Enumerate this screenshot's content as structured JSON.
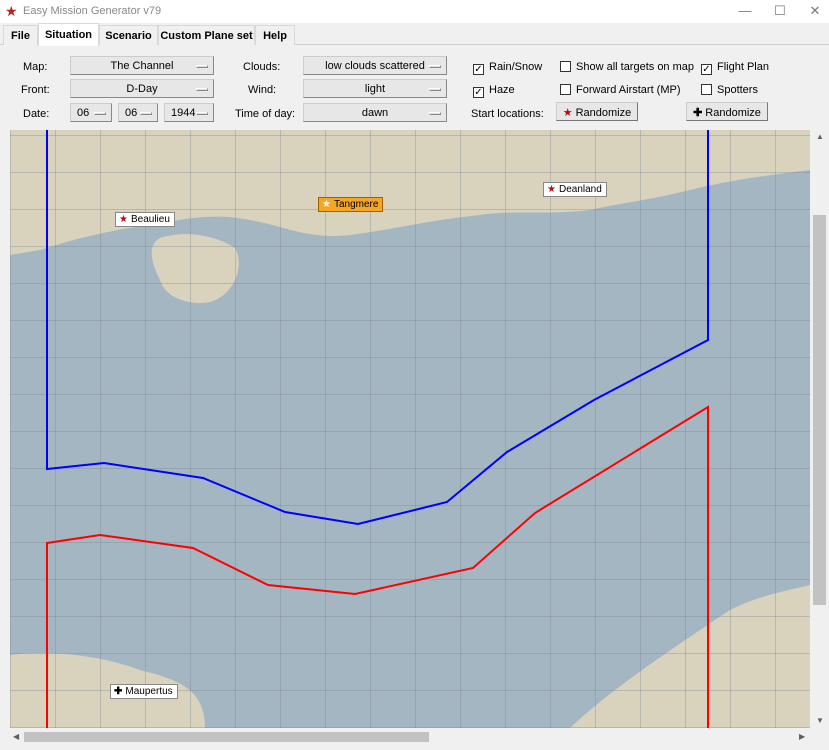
{
  "window": {
    "title": "Easy Mission Generator v79",
    "minimize": "—",
    "maximize": "☐",
    "close": "✕"
  },
  "tabs": [
    {
      "label": "File"
    },
    {
      "label": "Situation",
      "active": true
    },
    {
      "label": "Scenario"
    },
    {
      "label": "Custom Plane set"
    },
    {
      "label": "Help"
    }
  ],
  "situation": {
    "map_label": "Map:",
    "map_value": "The Channel",
    "front_label": "Front:",
    "front_value": "D-Day",
    "date_label": "Date:",
    "date_day": "06",
    "date_month": "06",
    "date_year": "1944",
    "clouds_label": "Clouds:",
    "clouds_value": "low clouds scattered",
    "wind_label": "Wind:",
    "wind_value": "light",
    "time_label": "Time of day:",
    "time_value": "dawn",
    "checkboxes": [
      {
        "label": "Rain/Snow",
        "checked": true
      },
      {
        "label": "Show all targets on map",
        "checked": false
      },
      {
        "label": "Flight Plan",
        "checked": true
      },
      {
        "label": "Haze",
        "checked": true
      },
      {
        "label": "Forward Airstart (MP)",
        "checked": false
      },
      {
        "label": "Spotters",
        "checked": false
      }
    ],
    "start_locations_label": "Start locations:",
    "randomize_allied": "Randomize",
    "randomize_axis": "Randomize"
  },
  "map": {
    "airfields": [
      {
        "name": "Beaulieu",
        "side": "allied",
        "icon": "star-icon"
      },
      {
        "name": "Tangmere",
        "side": "allied",
        "icon": "star-icon",
        "selected": true
      },
      {
        "name": "Deanland",
        "side": "allied",
        "icon": "star-icon"
      },
      {
        "name": "Maupertus",
        "side": "axis",
        "icon": "cross-icon"
      }
    ],
    "colors": {
      "allied_front": "#0000ff",
      "axis_front": "#ff0000",
      "selected": "#f5a623",
      "sea": "#a5b6c3",
      "land": "#d9d3bd"
    }
  }
}
